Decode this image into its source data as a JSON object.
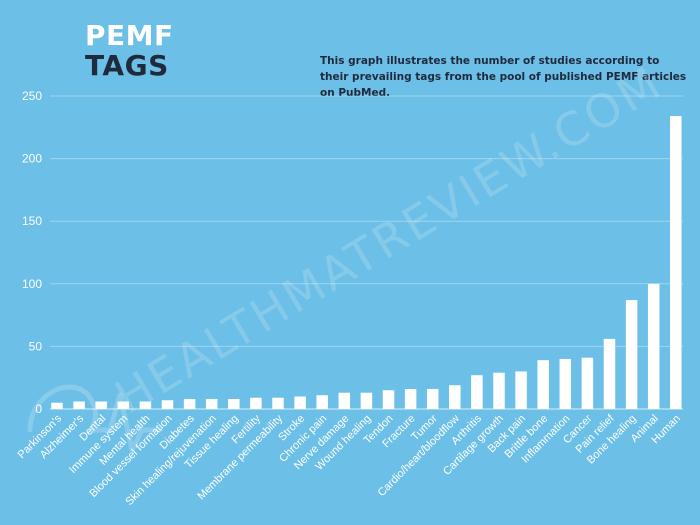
{
  "header": {
    "title_line1": "PEMF",
    "title_line2": "TAGS",
    "caption": "This graph illustrates the number of studies according to their prevailing tags from the pool of published PEMF articles on PubMed."
  },
  "watermark": "HEALTHMATREVIEW.COM",
  "colors": {
    "background": "#6cbfe6",
    "bar": "#ffffff",
    "title_dark": "#1f2a3d"
  },
  "chart_data": {
    "type": "bar",
    "categories": [
      "Parkinson's",
      "Alzheimer's",
      "Dental",
      "Immune system",
      "Mental health",
      "Blood vessel formation",
      "Diabetes",
      "Skin healing/rejuvenation",
      "Tissue healing",
      "Fertility",
      "Membrane permeability",
      "Stroke",
      "Chronic pain",
      "Nerve damage",
      "Wound healing",
      "Tendon",
      "Fracture",
      "Tumor",
      "Cardio/heart/bloodflow",
      "Arthritis",
      "Cartilage growth",
      "Back pain",
      "Brittle bone",
      "Inflammation",
      "Cancer",
      "Pain relief",
      "Bone healing",
      "Animal",
      "Human"
    ],
    "values": [
      5,
      6,
      6,
      6,
      6,
      7,
      8,
      8,
      8,
      9,
      9,
      10,
      11,
      13,
      13,
      15,
      16,
      16,
      19,
      27,
      29,
      30,
      39,
      40,
      41,
      56,
      87,
      100,
      234
    ],
    "title": "",
    "xlabel": "",
    "ylabel": "",
    "ylim": [
      0,
      250
    ],
    "yticks": [
      0,
      50,
      100,
      150,
      200,
      250
    ],
    "grid": true,
    "legend": "none"
  }
}
